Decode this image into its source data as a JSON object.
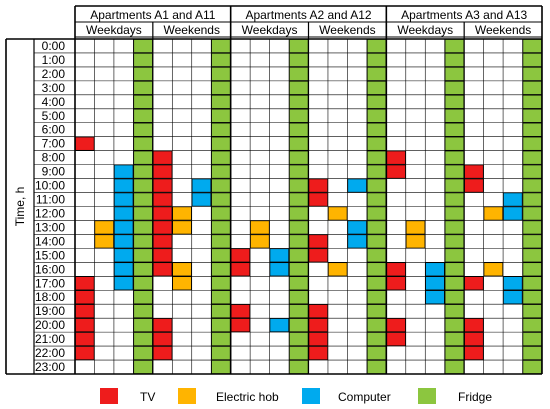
{
  "chart_data": {
    "type": "heatmap",
    "ylabel": "Time, h",
    "times": [
      "0:00",
      "1:00",
      "2:00",
      "3:00",
      "4:00",
      "5:00",
      "6:00",
      "7:00",
      "8:00",
      "9:00",
      "10:00",
      "11:00",
      "12:00",
      "13:00",
      "14:00",
      "15:00",
      "16:00",
      "17:00",
      "18:00",
      "19:00",
      "20:00",
      "21:00",
      "22:00",
      "23:00"
    ],
    "legend": [
      {
        "key": "tv",
        "label": "TV",
        "color": "#ee1c1c"
      },
      {
        "key": "hob",
        "label": "Electric hob",
        "color": "#ffb400"
      },
      {
        "key": "comp",
        "label": "Computer",
        "color": "#00aaee"
      },
      {
        "key": "fridge",
        "label": "Fridge",
        "color": "#8cc63f"
      }
    ],
    "groups": [
      {
        "title": "Apartments A1 and A11",
        "periods": [
          {
            "label": "Weekdays",
            "usage": {
              "tv": [
                7,
                17,
                18,
                19,
                20,
                21,
                22
              ],
              "hob": [
                13,
                14
              ],
              "comp": [
                9,
                10,
                11,
                12,
                13,
                14,
                15,
                16,
                17
              ],
              "fridge": [
                0,
                1,
                2,
                3,
                4,
                5,
                6,
                7,
                8,
                9,
                10,
                11,
                12,
                13,
                14,
                15,
                16,
                17,
                18,
                19,
                20,
                21,
                22,
                23
              ]
            }
          },
          {
            "label": "Weekends",
            "usage": {
              "tv": [
                8,
                9,
                10,
                11,
                12,
                13,
                14,
                15,
                16,
                20,
                21,
                22
              ],
              "hob": [
                12,
                13,
                16,
                17
              ],
              "comp": [
                10,
                11
              ],
              "fridge": [
                0,
                1,
                2,
                3,
                4,
                5,
                6,
                7,
                8,
                9,
                10,
                11,
                12,
                13,
                14,
                15,
                16,
                17,
                18,
                19,
                20,
                21,
                22,
                23
              ]
            }
          }
        ]
      },
      {
        "title": "Apartments A2 and A12",
        "periods": [
          {
            "label": "Weekdays",
            "usage": {
              "tv": [
                15,
                16,
                19,
                20
              ],
              "hob": [
                13,
                14
              ],
              "comp": [
                15,
                16,
                20
              ],
              "fridge": [
                0,
                1,
                2,
                3,
                4,
                5,
                6,
                7,
                8,
                9,
                10,
                11,
                12,
                13,
                14,
                15,
                16,
                17,
                18,
                19,
                20,
                21,
                22,
                23
              ]
            }
          },
          {
            "label": "Weekends",
            "usage": {
              "tv": [
                10,
                11,
                14,
                15,
                19,
                20,
                21,
                22
              ],
              "hob": [
                12,
                16
              ],
              "comp": [
                10,
                13,
                14
              ],
              "fridge": [
                0,
                1,
                2,
                3,
                4,
                5,
                6,
                7,
                8,
                9,
                10,
                11,
                12,
                13,
                14,
                15,
                16,
                17,
                18,
                19,
                20,
                21,
                22,
                23
              ]
            }
          }
        ]
      },
      {
        "title": "Apartments A3 and A13",
        "periods": [
          {
            "label": "Weekdays",
            "usage": {
              "tv": [
                8,
                9,
                16,
                17,
                20,
                21
              ],
              "hob": [
                13,
                14
              ],
              "comp": [
                16,
                17,
                18
              ],
              "fridge": [
                0,
                1,
                2,
                3,
                4,
                5,
                6,
                7,
                8,
                9,
                10,
                11,
                12,
                13,
                14,
                15,
                16,
                17,
                18,
                19,
                20,
                21,
                22,
                23
              ]
            }
          },
          {
            "label": "Weekends",
            "usage": {
              "tv": [
                9,
                10,
                17,
                20,
                21,
                22
              ],
              "hob": [
                12,
                16
              ],
              "comp": [
                11,
                12,
                17,
                18
              ],
              "fridge": [
                0,
                1,
                2,
                3,
                4,
                5,
                6,
                7,
                8,
                9,
                10,
                11,
                12,
                13,
                14,
                15,
                16,
                17,
                18,
                19,
                20,
                21,
                22,
                23
              ]
            }
          }
        ]
      }
    ]
  }
}
